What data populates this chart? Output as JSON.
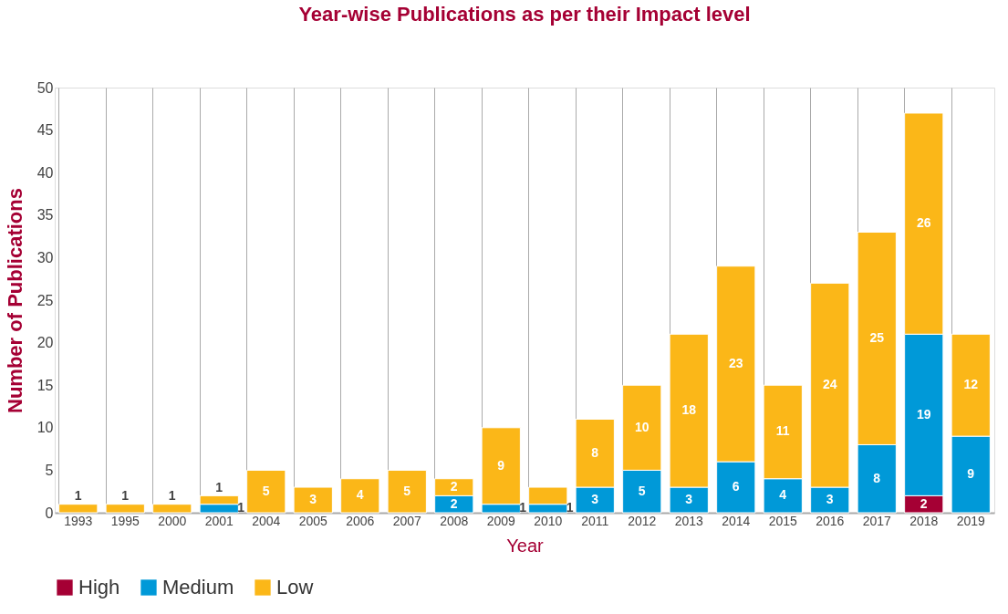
{
  "chart_data": {
    "type": "bar",
    "title": "Year-wise Publications as per their Impact level",
    "xlabel": "Year",
    "ylabel": "Number of Publications",
    "categories": [
      "1993",
      "1995",
      "2000",
      "2001",
      "2004",
      "2005",
      "2006",
      "2007",
      "2008",
      "2009",
      "2010",
      "2011",
      "2012",
      "2013",
      "2014",
      "2015",
      "2016",
      "2017",
      "2018",
      "2019"
    ],
    "stacked": true,
    "ylim": [
      0,
      50
    ],
    "yticks": [
      0,
      5,
      10,
      15,
      20,
      25,
      30,
      35,
      40,
      45,
      50
    ],
    "grid": "x",
    "legend": "bottom",
    "series": [
      {
        "name": "High",
        "color": "#a50034",
        "values": [
          null,
          null,
          null,
          null,
          null,
          null,
          null,
          null,
          null,
          null,
          null,
          null,
          null,
          null,
          null,
          null,
          null,
          null,
          2,
          null
        ],
        "value_labels": [
          null,
          null,
          null,
          null,
          null,
          null,
          null,
          null,
          null,
          null,
          null,
          null,
          null,
          null,
          null,
          null,
          null,
          null,
          "2",
          null
        ]
      },
      {
        "name": "Medium",
        "color": "#0099d8",
        "values": [
          null,
          null,
          null,
          1,
          null,
          null,
          null,
          null,
          2,
          1,
          1,
          3,
          5,
          3,
          6,
          4,
          3,
          8,
          19,
          9
        ],
        "value_labels": [
          null,
          null,
          null,
          "1",
          null,
          null,
          null,
          null,
          "2",
          "1",
          "1",
          "3",
          "5",
          "3",
          "6",
          "4",
          "3",
          "8",
          "19",
          "9"
        ]
      },
      {
        "name": "Low",
        "color": "#fbb718",
        "values": [
          1,
          1,
          1,
          1,
          5,
          3,
          4,
          5,
          2,
          9,
          2,
          8,
          10,
          18,
          23,
          11,
          24,
          25,
          26,
          12
        ],
        "value_labels": [
          "1",
          "1",
          "1",
          "1",
          "5",
          "3",
          "4",
          "5",
          "2",
          "9",
          null,
          "8",
          "10",
          "18",
          "23",
          "11",
          "24",
          "25",
          "26",
          "12"
        ]
      }
    ]
  }
}
